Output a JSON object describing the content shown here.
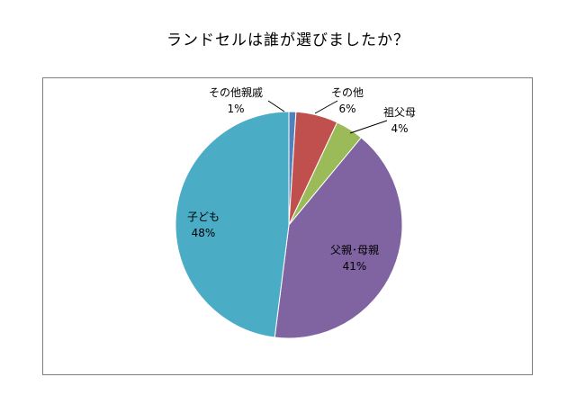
{
  "chart_data": {
    "type": "pie",
    "title": "ランドセルは誰が選びましたか？",
    "slices": [
      {
        "label": "その他親戚",
        "value": 1,
        "percent_label": "1%",
        "color": "#4f81bd"
      },
      {
        "label": "その他",
        "value": 6,
        "percent_label": "6%",
        "color": "#c0504d"
      },
      {
        "label": "祖父母",
        "value": 4,
        "percent_label": "4%",
        "color": "#9bbb59"
      },
      {
        "label": "父親･母親",
        "value": 41,
        "percent_label": "41%",
        "color": "#8064a2"
      },
      {
        "label": "子ども",
        "value": 48,
        "percent_label": "48%",
        "color": "#4bacc6"
      }
    ],
    "start_angle": "12 o'clock, clockwise",
    "legend": "none (data labels on chart)"
  }
}
